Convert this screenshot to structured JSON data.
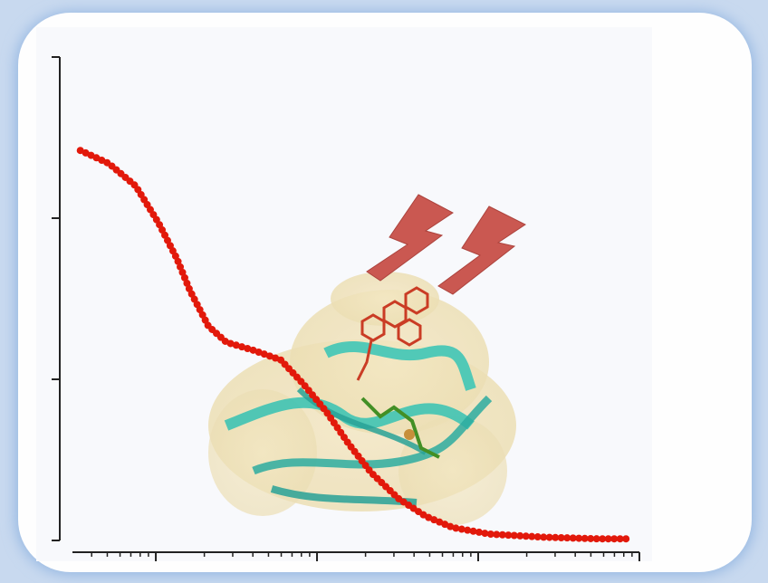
{
  "chart_data": {
    "type": "line",
    "xscale": "log",
    "x": [
      0.34,
      0.51,
      0.75,
      1.04,
      1.35,
      1.63,
      2.12,
      2.74,
      4.04,
      5.96,
      8.24,
      11.4,
      15.7,
      21.7,
      32.0,
      47.2,
      69.6,
      117,
      254,
      552,
      890
    ],
    "series": [
      {
        "color": "#e2190b",
        "values": [
          2.42,
          2.34,
          2.2,
          1.97,
          1.75,
          1.55,
          1.33,
          1.23,
          1.18,
          1.12,
          0.97,
          0.8,
          0.6,
          0.42,
          0.26,
          0.15,
          0.08,
          0.04,
          0.02,
          0.01,
          0.01
        ]
      }
    ],
    "xlim": [
      0.304,
      1000
    ],
    "xticks": [
      1,
      10,
      100,
      1000
    ],
    "xminorticks": [
      0.4,
      0.5,
      0.6,
      0.7,
      0.8,
      0.9,
      2,
      3,
      4,
      5,
      6,
      7,
      8,
      9,
      20,
      30,
      40,
      50,
      60,
      70,
      80,
      90,
      200,
      300,
      400,
      500,
      600,
      700,
      800,
      900
    ],
    "ylim": [
      0,
      3
    ],
    "yticks": [
      0,
      1,
      2,
      3
    ]
  }
}
